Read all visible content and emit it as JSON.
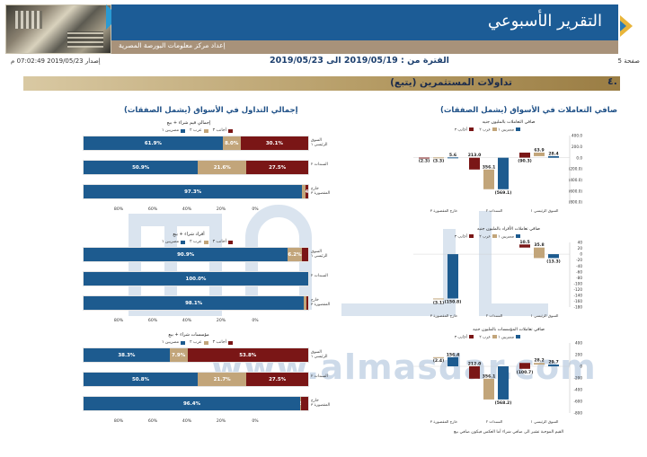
{
  "header": {
    "title": "التقرير الأسبوعي",
    "subtitle": "إعداد مركز معلومات البورصة المصرية",
    "issue": "إصدار 2019/05/23 07:02:49 م",
    "period": "الفترة من : 2019/05/19 الى 2019/05/23",
    "page": "صفحة 5"
  },
  "section": {
    "number": "٤.",
    "title": "تداولات المستثمرين  (يتبع)"
  },
  "columns": {
    "right_title": "صافي التعاملات في الأسواق (يشمل الصفقات)",
    "left_title": "إجمالي التداول في الأسواق (يشمل الصفقات)"
  },
  "legend_labels": {
    "egyptians": "مصريين ١",
    "arabs": "عرب ٢",
    "foreigners": "أجانب ٣"
  },
  "colors": {
    "egyptians": "#1d5b8f",
    "arabs": "#c2a57a",
    "foreigners": "#7a1616",
    "header_band": "#1c5c96",
    "section_bar": "#b49a63"
  },
  "row_labels": [
    "السوق الرئيسي ١",
    "السندات ٢",
    "خارج المقصورة ٣"
  ],
  "pct_ticks": [
    "80%",
    "60%",
    "40%",
    "20%",
    "0%"
  ],
  "hpanels": [
    {
      "title": "إجمالي قيم شراء + بيع",
      "rows": [
        {
          "egyptians": 61.9,
          "arabs": 8.0,
          "foreigners": 30.1,
          "labels": [
            "61.9%",
            "8.0%",
            "30.1%"
          ]
        },
        {
          "egyptians": 50.9,
          "arabs": 21.6,
          "foreigners": 27.5,
          "labels": [
            "50.9%",
            "21.6%",
            "27.5%"
          ]
        },
        {
          "egyptians": 97.3,
          "arabs": 1.3,
          "foreigners": 1.4,
          "labels": [
            "97.3%",
            "",
            "1.4%"
          ]
        }
      ]
    },
    {
      "title": "أفراد شراء + بيع",
      "rows": [
        {
          "egyptians": 90.9,
          "arabs": 6.2,
          "foreigners": 2.9,
          "labels": [
            "90.9%",
            "6.2%",
            ""
          ]
        },
        {
          "egyptians": 100.0,
          "arabs": 0.0,
          "foreigners": 0.0,
          "labels": [
            "100.0%",
            "",
            ""
          ]
        },
        {
          "egyptians": 98.1,
          "arabs": 1.0,
          "foreigners": 0.9,
          "labels": [
            "98.1%",
            "",
            ""
          ]
        }
      ]
    },
    {
      "title": "مؤسسات شراء + بيع",
      "rows": [
        {
          "egyptians": 38.3,
          "arabs": 7.9,
          "foreigners": 53.8,
          "labels": [
            "38.3%",
            "7.9%",
            "53.8%"
          ]
        },
        {
          "egyptians": 50.8,
          "arabs": 21.7,
          "foreigners": 27.5,
          "labels": [
            "50.8%",
            "21.7%",
            "27.5%"
          ]
        },
        {
          "egyptians": 96.4,
          "arabs": 0.3,
          "foreigners": 3.3,
          "labels": [
            "96.4%",
            "0.3%",
            ""
          ]
        }
      ]
    }
  ],
  "chart_data": [
    {
      "type": "bar",
      "title": "صافي التعاملات بالمليون جنيه",
      "categories": [
        "السوق الرئيسي ١",
        "السندات ٢",
        "خارج المقصورة ٣"
      ],
      "series": [
        {
          "name": "مصريين ١",
          "values": [
            28.4,
            -569.1,
            5.6
          ]
        },
        {
          "name": "عرب ٢",
          "values": [
            63.9,
            356.1,
            -3.3
          ]
        },
        {
          "name": "أجانب ٣",
          "values": [
            -90.3,
            213.0,
            -2.3
          ]
        }
      ],
      "ylim": [
        -800,
        400
      ],
      "yticks": [
        "400.0",
        "200.0",
        "0.0",
        "(200.0)",
        "(400.0)",
        "(600.0)",
        "(800.0)"
      ]
    },
    {
      "type": "bar",
      "title": "صافي تعاملات الأفراد بالمليون جنيه",
      "categories": [
        "السوق الرئيسي ١",
        "السندات ٢",
        "خارج المقصورة ٣"
      ],
      "series": [
        {
          "name": "مصريين ١",
          "values": [
            -13.3,
            0.0,
            -150.8
          ]
        },
        {
          "name": "عرب ٢",
          "values": [
            35.8,
            0.0,
            -3.1
          ]
        },
        {
          "name": "أجانب ٣",
          "values": [
            10.5,
            0.0,
            0.0
          ]
        }
      ],
      "ylim": [
        -180,
        40
      ],
      "yticks": [
        "40",
        "20",
        "0",
        "-20",
        "-40",
        "-60",
        "-80",
        "-100",
        "-120",
        "-140",
        "-160",
        "-180"
      ]
    },
    {
      "type": "bar",
      "title": "صافي تعاملات المؤسسات بالمليون جنيه",
      "categories": [
        "السوق الرئيسي ١",
        "السندات ٢",
        "خارج المقصورة ٣"
      ],
      "series": [
        {
          "name": "مصريين ١",
          "values": [
            29.7,
            -568.2,
            156.4
          ]
        },
        {
          "name": "عرب ٢",
          "values": [
            28.2,
            356.1,
            -2.4
          ]
        },
        {
          "name": "أجانب ٣",
          "values": [
            -100.7,
            212.0,
            0.0
          ]
        }
      ],
      "ylim": [
        -800,
        400
      ],
      "yticks": [
        "400",
        "200",
        "0",
        "-200",
        "-400",
        "-600",
        "-800"
      ]
    }
  ],
  "footnote": "القيم الموجبة تشير الى صافي شراء أما العكس فيكون صافي بيع",
  "watermark": {
    "text": "www.almasdar.com"
  }
}
